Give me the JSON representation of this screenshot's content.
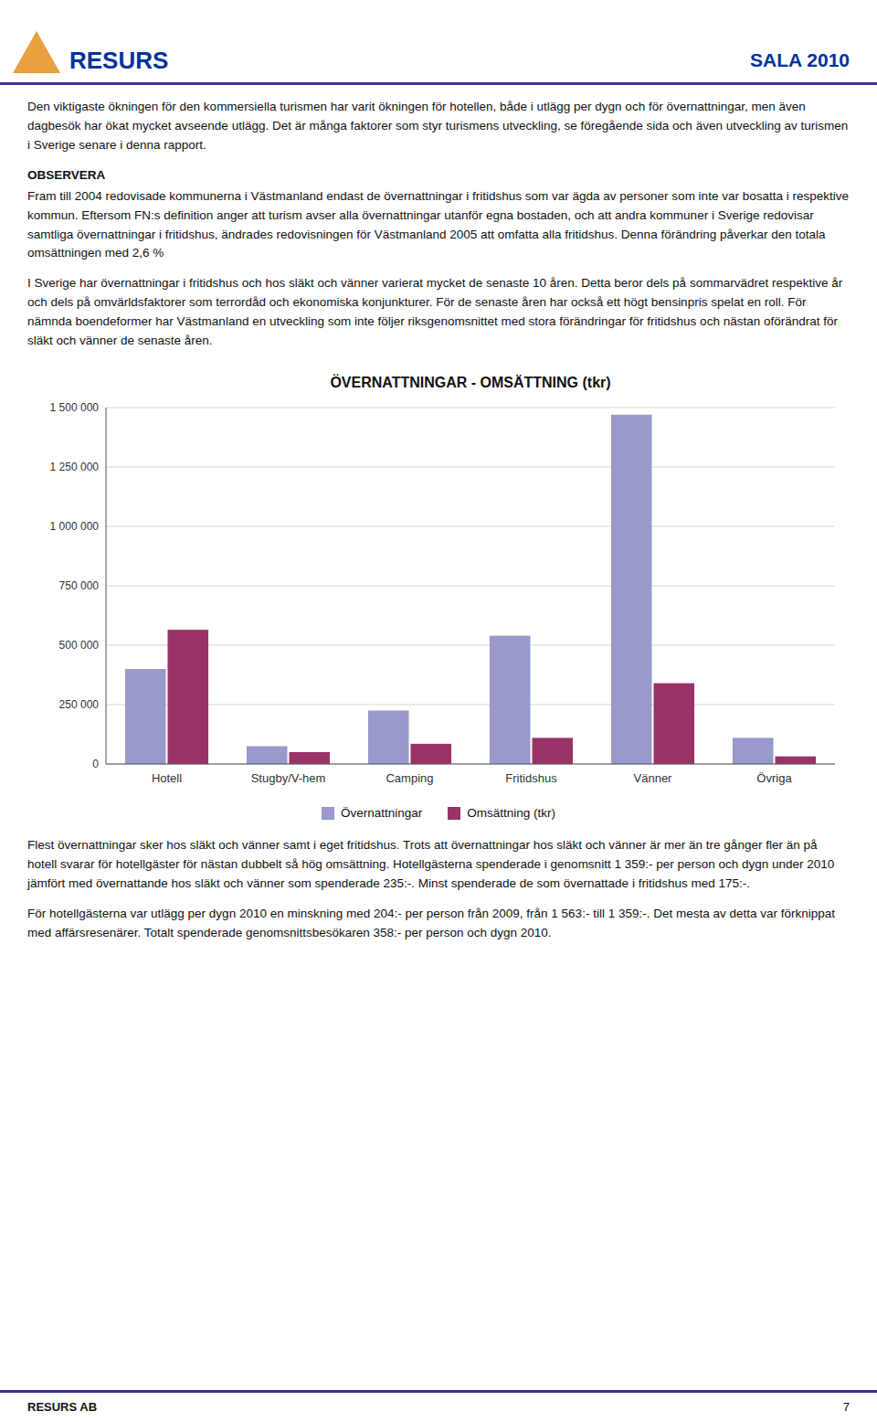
{
  "logo_text": "RESURS",
  "header_title": "SALA 2010",
  "para1": "Den viktigaste ökningen för den kommersiella turismen har varit ökningen för hotellen, både i utlägg per dygn och för övernattningar, men även dagbesök har ökat mycket avseende utlägg. Det är många faktorer som styr turismens utveckling, se föregående sida och även utveckling av turismen i Sverige senare i denna rapport.",
  "observera_heading": "OBSERVERA",
  "para2": "Fram till 2004 redovisade kommunerna i Västmanland endast de övernattningar i fritidshus som var ägda av personer som inte var bosatta i respektive kommun. Eftersom FN:s definition anger att turism avser alla övernattningar utanför egna bostaden, och att andra kommuner i Sverige redovisar samtliga övernattningar i fritidshus, ändrades redovisningen för Västmanland 2005 att omfatta alla fritidshus. Denna förändring påverkar den totala omsättningen med 2,6 %",
  "para3": "I Sverige har övernattningar i fritidshus och hos släkt och vänner varierat mycket de senaste 10 åren. Detta beror dels på sommarvädret respektive år och dels på omvärldsfaktorer som terrordåd och ekonomiska konjunkturer. För de senaste åren har också ett högt bensinpris spelat en roll. För nämnda boendeformer har Västmanland en utveckling som inte följer riksgenomsnittet med stora förändringar för fritidshus och nästan oförändrat för släkt och vänner de senaste åren.",
  "chart_data": {
    "type": "bar",
    "title": "ÖVERNATTNINGAR - OMSÄTTNING (tkr)",
    "categories": [
      "Hotell",
      "Stugby/V-hem",
      "Camping",
      "Fritidshus",
      "Vänner",
      "Övriga"
    ],
    "series": [
      {
        "name": "Övernattningar",
        "color": "#9999CC",
        "values": [
          400000,
          75000,
          225000,
          540000,
          1470000,
          110000
        ]
      },
      {
        "name": "Omsättning (tkr)",
        "color": "#993366",
        "values": [
          565000,
          50000,
          85000,
          110000,
          340000,
          32000
        ]
      }
    ],
    "ylim": [
      0,
      1500000
    ],
    "yticks": [
      0,
      {
        "value": 250000,
        "label": "250 000"
      },
      {
        "value": 500000,
        "label": "500 000"
      },
      {
        "value": 750000,
        "label": "750 000"
      },
      {
        "value": 1000000,
        "label": "1 000 000"
      },
      {
        "value": 1250000,
        "label": "1 250 000"
      },
      {
        "value": 1500000,
        "label": "1 500 000"
      }
    ],
    "grid": true,
    "legend": "bottom"
  },
  "para4": "Flest övernattningar sker hos släkt och vänner samt i eget fritidshus. Trots att övernattningar hos släkt och vänner är mer än tre gånger fler än på hotell svarar för hotellgäster för nästan dubbelt så hög omsättning. Hotellgästerna spenderade i genomsnitt 1 359:- per person och dygn under 2010 jämfört med övernattande hos släkt och vänner som spenderade 235:-. Minst spenderade de som övernattade i fritidshus med 175:-.",
  "para5": "För hotellgästerna var utlägg per dygn 2010 en minskning med 204:- per person från 2009, från 1 563:- till 1 359:-. Det mesta av detta var förknippat med affärsresenärer. Totalt spenderade genomsnittsbesökaren 358:- per person och dygn 2010.",
  "footer_text": "RESURS AB",
  "footer_page": "7"
}
